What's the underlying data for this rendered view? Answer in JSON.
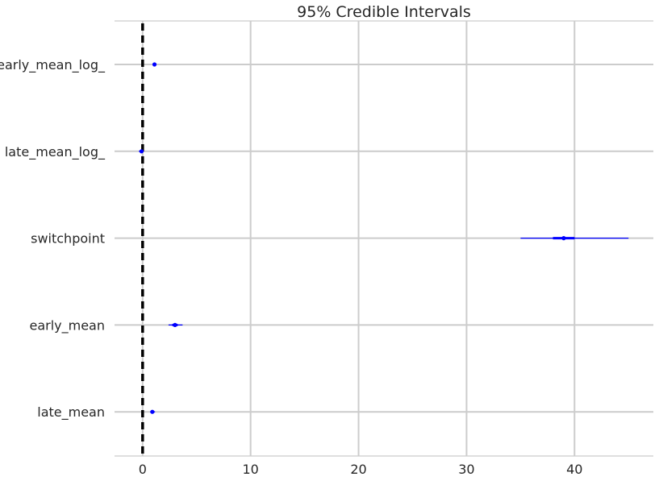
{
  "chart_data": {
    "type": "forest",
    "title": "95% Credible Intervals",
    "xlabel": "",
    "ylabel": "",
    "xlim": [
      -2.6,
      47.3
    ],
    "xticks": [
      0,
      10,
      20,
      30,
      40
    ],
    "xtick_labels": [
      "0",
      "10",
      "20",
      "30",
      "40"
    ],
    "grid": true,
    "reference_line": {
      "x": 0,
      "style": "dashed",
      "color": "#000000"
    },
    "interval_color": "#0000ff",
    "series": [
      {
        "name": "early_mean_log_",
        "mean": 1.1,
        "hpd_95": [
          0.95,
          1.25
        ],
        "iqr": [
          1.05,
          1.15
        ]
      },
      {
        "name": "late_mean_log_",
        "mean": -0.1,
        "hpd_95": [
          -0.35,
          0.1
        ],
        "iqr": [
          -0.2,
          0.0
        ]
      },
      {
        "name": "switchpoint",
        "mean": 39.0,
        "hpd_95": [
          35.0,
          45.0
        ],
        "iqr": [
          38.0,
          40.0
        ]
      },
      {
        "name": "early_mean",
        "mean": 3.0,
        "hpd_95": [
          2.4,
          3.7
        ],
        "iqr": [
          2.75,
          3.25
        ]
      },
      {
        "name": "late_mean",
        "mean": 0.9,
        "hpd_95": [
          0.7,
          1.15
        ],
        "iqr": [
          0.8,
          1.0
        ]
      }
    ]
  }
}
